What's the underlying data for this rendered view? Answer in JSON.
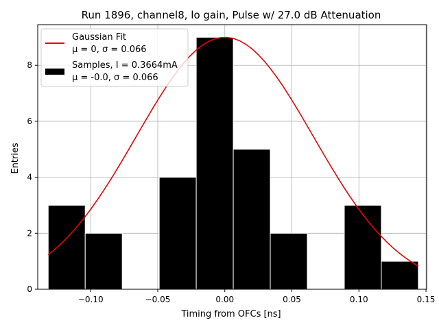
{
  "chart_data": {
    "type": "bar",
    "title": "Run 1896, channel8, lo gain, Pulse w/ 27.0 dB Attenuation",
    "xlabel": "Timing from OFCs [ns]",
    "ylabel": "Entries",
    "xlim": [
      -0.1395,
      0.1505
    ],
    "ylim": [
      0,
      9.45
    ],
    "xticks": [
      -0.1,
      -0.05,
      0.0,
      0.05,
      0.1,
      0.15
    ],
    "xtick_labels": [
      "−0.10",
      "−0.05",
      "0.00",
      "0.05",
      "0.10",
      "0.15"
    ],
    "yticks": [
      0,
      2,
      4,
      6,
      8
    ],
    "ytick_labels": [
      "0",
      "2",
      "4",
      "6",
      "8"
    ],
    "grid": true,
    "legend_position": "top-left",
    "histogram": {
      "name": "Samples, I = 0.3664mA",
      "stats": "μ = -0.0, σ = 0.066",
      "color": "#000000",
      "edge_color": "#ffffff",
      "bin_edges": [
        -0.1317,
        -0.1041,
        -0.0765,
        -0.0489,
        -0.0213,
        0.0063,
        0.0339,
        0.0615,
        0.0891,
        0.1167,
        0.1443
      ],
      "counts": [
        3,
        2,
        0,
        4,
        9,
        5,
        2,
        0,
        3,
        1
      ]
    },
    "fit": {
      "name": "Gaussian Fit",
      "stats": "μ = 0, σ = 0.066",
      "color": "#ee0000",
      "amplitude": 9.0,
      "mu": 0.0,
      "sigma": 0.066,
      "x_range": [
        -0.1317,
        0.1443
      ]
    }
  }
}
